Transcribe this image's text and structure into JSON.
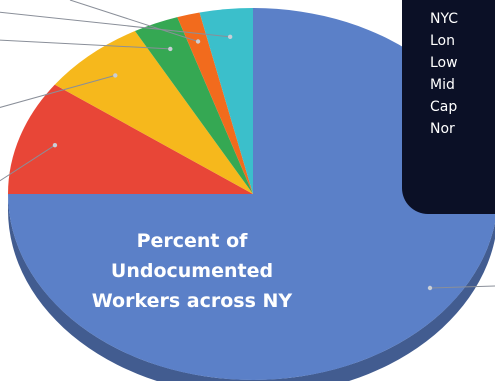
{
  "chart_data": {
    "type": "pie",
    "style": "3d",
    "title": "Percent of Undocumented Workers across NY",
    "legend_placement": "top-right",
    "slices": [
      {
        "label": "NYC",
        "value": 75.0,
        "color": "#5b80c8"
      },
      {
        "label": "Lon",
        "value": 10.0,
        "color": "#e84637"
      },
      {
        "label": "Low",
        "value": 7.0,
        "color": "#f6b81c"
      },
      {
        "label": "Mid",
        "value": 3.0,
        "color": "#35a853"
      },
      {
        "label": "Cap",
        "value": 1.5,
        "color": "#f26b1d"
      },
      {
        "label": "Nor",
        "value": 3.5,
        "color": "#3bbfcb"
      }
    ]
  },
  "legend_items": [
    "NYC",
    "Lon",
    "Low",
    "Mid",
    "Cap",
    "Nor"
  ],
  "title_lines": [
    "Percent of Undocumented",
    "Workers across NY"
  ]
}
